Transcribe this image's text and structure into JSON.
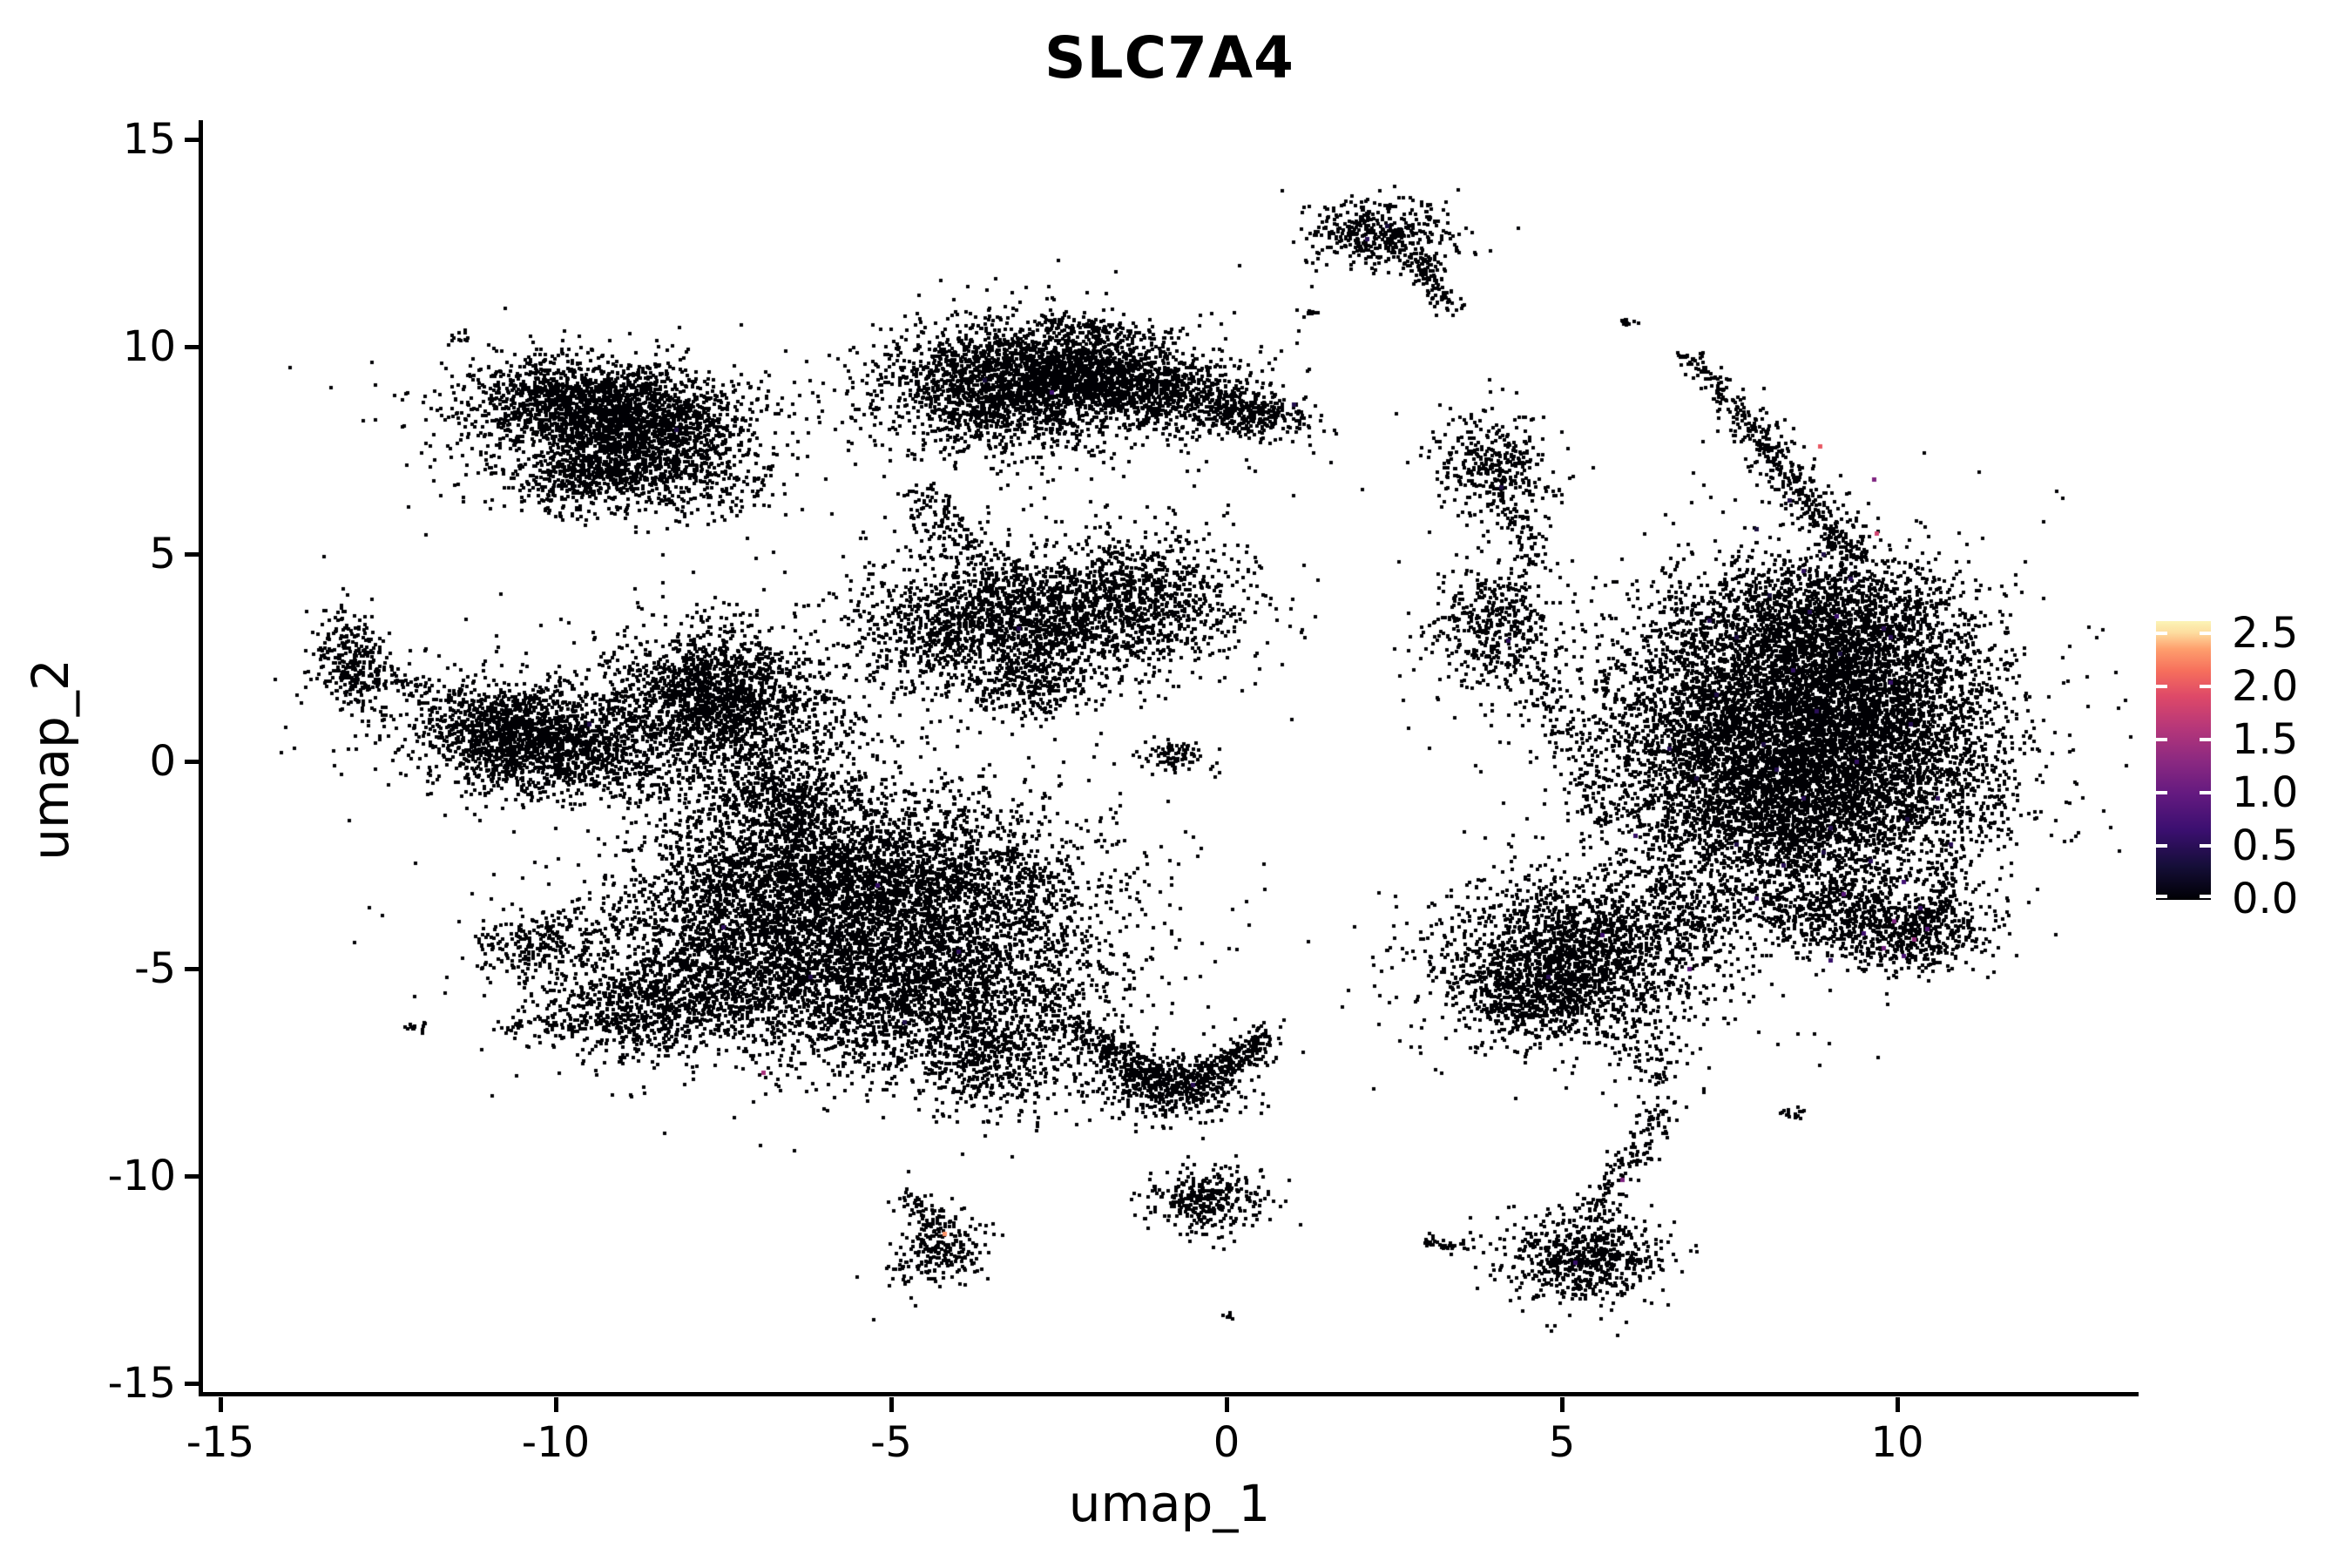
{
  "title": "SLC7A4",
  "chart_data": {
    "type": "scatter",
    "subtype": "umap-feature-plot",
    "title": "SLC7A4",
    "xlabel": "umap_1",
    "ylabel": "umap_2",
    "x_tick_labels": [
      "-15",
      "-10",
      "-5",
      "0",
      "5",
      "10"
    ],
    "x_tick_values": [
      -15,
      -10,
      -5,
      0,
      5,
      10
    ],
    "y_tick_labels": [
      "15",
      "10",
      "5",
      "0",
      "-5",
      "-10",
      "-15"
    ],
    "y_tick_values": [
      15,
      10,
      5,
      0,
      -5,
      -10,
      -15
    ],
    "xlim": [
      -15.3,
      13.6
    ],
    "ylim": [
      -15.3,
      15.4
    ],
    "grid": false,
    "legend_position": "right-colorbar",
    "point_color": "#000004",
    "dot_size": 4,
    "expressing_dot_size": 5,
    "seed": 42,
    "colorbar": {
      "tick_labels": [
        "2.5",
        "2.0",
        "1.5",
        "1.0",
        "0.5",
        "0.0"
      ],
      "tick_values": [
        2.5,
        2.0,
        1.5,
        1.0,
        0.5,
        0.0
      ],
      "vmin": 0.0,
      "vmax": 2.61,
      "colormap": [
        [
          0.0,
          "#000004"
        ],
        [
          0.12,
          "#150e38"
        ],
        [
          0.25,
          "#3b0f70"
        ],
        [
          0.38,
          "#641a80"
        ],
        [
          0.5,
          "#8c2981"
        ],
        [
          0.62,
          "#b73779"
        ],
        [
          0.73,
          "#de4968"
        ],
        [
          0.82,
          "#f66e5c"
        ],
        [
          0.9,
          "#fe9f6d"
        ],
        [
          0.96,
          "#fddea0"
        ],
        [
          1.0,
          "#fcf4b6"
        ]
      ]
    },
    "clusters": [
      {
        "name": "top-left",
        "blobs": [
          {
            "cx": -9.7,
            "cy": 8.6,
            "sx": 0.85,
            "sy": 0.55,
            "rot": -10,
            "n": 1100
          },
          {
            "cx": -8.6,
            "cy": 8.2,
            "sx": 0.75,
            "sy": 0.6,
            "rot": 0,
            "n": 900
          },
          {
            "cx": -9.3,
            "cy": 7.0,
            "sx": 0.7,
            "sy": 0.45,
            "rot": 15,
            "n": 650
          },
          {
            "cx": -9.4,
            "cy": 8.0,
            "sx": 1.35,
            "sy": 0.95,
            "rot": 0,
            "n": 600
          },
          {
            "cx": -7.8,
            "cy": 6.8,
            "sx": 0.5,
            "sy": 0.55,
            "rot": 0,
            "n": 220
          },
          {
            "cx": -11.5,
            "cy": 10.2,
            "sx": 0.1,
            "sy": 0.06,
            "rot": 0,
            "n": 12
          }
        ],
        "lines": []
      },
      {
        "name": "left-satellite",
        "blobs": [
          {
            "cx": -13.0,
            "cy": 2.4,
            "sx": 0.32,
            "sy": 0.6,
            "rot": 10,
            "n": 320
          }
        ],
        "lines": [
          {
            "x1": -12.5,
            "y1": 2.0,
            "x2": -10.9,
            "y2": 1.3,
            "sigma": 0.15,
            "n": 70
          }
        ]
      },
      {
        "name": "left-middle",
        "blobs": [
          {
            "cx": -10.1,
            "cy": 0.35,
            "sx": 1.0,
            "sy": 0.6,
            "rot": -5,
            "n": 1300
          },
          {
            "cx": -10.7,
            "cy": 0.9,
            "sx": 0.55,
            "sy": 0.45,
            "rot": 0,
            "n": 450
          },
          {
            "cx": -7.4,
            "cy": 1.1,
            "sx": 0.8,
            "sy": 1.05,
            "rot": 12,
            "n": 1300
          },
          {
            "cx": -7.7,
            "cy": 1.9,
            "sx": 0.55,
            "sy": 0.6,
            "rot": 0,
            "n": 500
          },
          {
            "cx": -9.0,
            "cy": 0.8,
            "sx": 1.8,
            "sy": 1.0,
            "rot": 0,
            "n": 650
          }
        ],
        "lines": [
          {
            "x1": -7.0,
            "y1": -0.6,
            "x2": -5.9,
            "y2": -2.9,
            "sigma": 0.35,
            "n": 220
          }
        ]
      },
      {
        "name": "mid-top",
        "blobs": [
          {
            "cx": -3.3,
            "cy": 9.0,
            "sx": 0.95,
            "sy": 0.75,
            "rot": 0,
            "n": 1500
          },
          {
            "cx": -2.2,
            "cy": 9.4,
            "sx": 0.8,
            "sy": 0.5,
            "rot": -8,
            "n": 850
          },
          {
            "cx": -1.0,
            "cy": 8.9,
            "sx": 0.9,
            "sy": 0.42,
            "rot": -14,
            "n": 700
          },
          {
            "cx": 0.3,
            "cy": 8.4,
            "sx": 0.5,
            "sy": 0.3,
            "rot": -20,
            "n": 260
          },
          {
            "cx": -2.4,
            "cy": 9.0,
            "sx": 1.6,
            "sy": 0.95,
            "rot": 0,
            "n": 650
          },
          {
            "cx": 1.25,
            "cy": 10.8,
            "sx": 0.08,
            "sy": 0.05,
            "rot": 0,
            "n": 10
          }
        ],
        "lines": [
          {
            "x1": -2.7,
            "y1": 10.6,
            "x2": -0.8,
            "y2": 10.2,
            "sigma": 0.12,
            "n": 80
          },
          {
            "x1": -4.6,
            "y1": 6.4,
            "x2": -3.7,
            "y2": 4.9,
            "sigma": 0.25,
            "n": 130
          }
        ]
      },
      {
        "name": "mid-center",
        "blobs": [
          {
            "cx": -3.6,
            "cy": 3.3,
            "sx": 1.0,
            "sy": 0.8,
            "rot": 8,
            "n": 1300
          },
          {
            "cx": -1.4,
            "cy": 3.9,
            "sx": 0.85,
            "sy": 0.8,
            "rot": 0,
            "n": 900
          },
          {
            "cx": -2.5,
            "cy": 3.5,
            "sx": 1.5,
            "sy": 1.0,
            "rot": 0,
            "n": 600
          },
          {
            "cx": -3.0,
            "cy": 1.8,
            "sx": 0.4,
            "sy": 0.4,
            "rot": 0,
            "n": 220
          },
          {
            "cx": -0.75,
            "cy": 0.1,
            "sx": 0.25,
            "sy": 0.2,
            "rot": 0,
            "n": 90
          }
        ],
        "lines": []
      },
      {
        "name": "bottom-left-mass",
        "blobs": [
          {
            "cx": -6.6,
            "cy": -2.7,
            "sx": 1.1,
            "sy": 0.85,
            "rot": 0,
            "n": 1500
          },
          {
            "cx": -4.5,
            "cy": -3.2,
            "sx": 1.3,
            "sy": 1.25,
            "rot": 0,
            "n": 2400
          },
          {
            "cx": -7.0,
            "cy": -5.0,
            "sx": 1.2,
            "sy": 1.0,
            "rot": 0,
            "n": 1700
          },
          {
            "cx": -4.3,
            "cy": -5.7,
            "sx": 1.25,
            "sy": 1.0,
            "rot": 0,
            "n": 1700
          },
          {
            "cx": -3.5,
            "cy": -7.4,
            "sx": 0.55,
            "sy": 0.6,
            "rot": 0,
            "n": 350
          },
          {
            "cx": -6.5,
            "cy": -0.9,
            "sx": 0.55,
            "sy": 0.45,
            "rot": 0,
            "n": 280
          },
          {
            "cx": -5.5,
            "cy": -4.2,
            "sx": 2.2,
            "sy": 1.8,
            "rot": 0,
            "n": 1000
          },
          {
            "cx": -8.7,
            "cy": -5.9,
            "sx": 0.85,
            "sy": 0.6,
            "rot": 25,
            "n": 550
          },
          {
            "cx": -10.4,
            "cy": -4.5,
            "sx": 0.45,
            "sy": 0.38,
            "rot": 0,
            "n": 220
          },
          {
            "cx": -12.1,
            "cy": -6.4,
            "sx": 0.12,
            "sy": 0.07,
            "rot": 0,
            "n": 14
          }
        ],
        "lines": [
          {
            "x1": -10.7,
            "y1": -6.4,
            "x2": -8.8,
            "y2": -6.2,
            "sigma": 0.13,
            "n": 90
          },
          {
            "x1": -9.9,
            "y1": -4.2,
            "x2": -8.8,
            "y2": -3.5,
            "sigma": 0.25,
            "n": 70
          }
        ]
      },
      {
        "name": "bottom-center-chevron",
        "blobs": [
          {
            "cx": -0.8,
            "cy": -7.9,
            "sx": 0.55,
            "sy": 0.4,
            "rot": 0,
            "n": 420
          }
        ],
        "lines": [
          {
            "x1": -2.1,
            "y1": -6.6,
            "x2": -0.9,
            "y2": -7.8,
            "sigma": 0.2,
            "n": 260
          },
          {
            "x1": 0.6,
            "y1": -6.6,
            "x2": -0.4,
            "y2": -7.8,
            "sigma": 0.18,
            "n": 240
          },
          {
            "x1": -2.6,
            "y1": -6.3,
            "x2": -2.0,
            "y2": -6.6,
            "sigma": 0.15,
            "n": 40
          }
        ]
      },
      {
        "name": "bottom-center-small",
        "blobs": [
          {
            "cx": -0.35,
            "cy": -10.6,
            "sx": 0.45,
            "sy": 0.38,
            "rot": 0,
            "n": 330
          },
          {
            "cx": 0.05,
            "cy": -13.4,
            "sx": 0.06,
            "sy": 0.05,
            "rot": 0,
            "n": 8
          },
          {
            "cx": -4.25,
            "cy": -11.8,
            "sx": 0.32,
            "sy": 0.45,
            "rot": -25,
            "n": 230
          }
        ],
        "lines": [
          {
            "x1": 2.95,
            "y1": -11.55,
            "x2": 3.6,
            "y2": -11.8,
            "sigma": 0.08,
            "n": 40
          },
          {
            "x1": -4.8,
            "y1": -10.4,
            "x2": -4.3,
            "y2": -11.3,
            "sigma": 0.12,
            "n": 60
          }
        ]
      },
      {
        "name": "top-center-flag",
        "blobs": [
          {
            "cx": 2.3,
            "cy": 12.7,
            "sx": 0.55,
            "sy": 0.38,
            "rot": -10,
            "n": 420
          },
          {
            "cx": 5.95,
            "cy": 10.6,
            "sx": 0.1,
            "sy": 0.06,
            "rot": 0,
            "n": 14
          }
        ],
        "lines": [
          {
            "x1": 2.85,
            "y1": 12.2,
            "x2": 3.25,
            "y2": 11.0,
            "sigma": 0.13,
            "n": 110
          }
        ]
      },
      {
        "name": "right-mass",
        "blobs": [
          {
            "cx": 8.9,
            "cy": 3.2,
            "sx": 1.05,
            "sy": 0.95,
            "rot": 0,
            "n": 1900
          },
          {
            "cx": 9.5,
            "cy": 1.0,
            "sx": 0.95,
            "sy": 1.3,
            "rot": 0,
            "n": 2200
          },
          {
            "cx": 8.2,
            "cy": 0.6,
            "sx": 1.2,
            "sy": 1.2,
            "rot": 0,
            "n": 2400
          },
          {
            "cx": 8.6,
            "cy": -1.4,
            "sx": 1.3,
            "sy": 0.95,
            "rot": 0,
            "n": 2000
          },
          {
            "cx": 6.9,
            "cy": 1.0,
            "sx": 0.8,
            "sy": 1.6,
            "rot": 0,
            "n": 800
          },
          {
            "cx": 8.5,
            "cy": 0.8,
            "sx": 2.0,
            "sy": 2.3,
            "rot": 0,
            "n": 1100
          },
          {
            "cx": 5.3,
            "cy": -4.6,
            "sx": 0.95,
            "sy": 0.9,
            "rot": 0,
            "n": 1500
          },
          {
            "cx": 4.6,
            "cy": -5.6,
            "sx": 0.6,
            "sy": 0.6,
            "rot": 0,
            "n": 500
          },
          {
            "cx": 5.3,
            "cy": -4.8,
            "sx": 1.45,
            "sy": 1.3,
            "rot": 0,
            "n": 500
          },
          {
            "cx": 9.3,
            "cy": -3.7,
            "sx": 1.05,
            "sy": 0.5,
            "rot": -14,
            "n": 800
          },
          {
            "cx": 10.3,
            "cy": -4.3,
            "sx": 0.45,
            "sy": 0.38,
            "rot": 0,
            "n": 260
          },
          {
            "cx": 10.9,
            "cy": 0.3,
            "sx": 0.5,
            "sy": 1.2,
            "rot": 0,
            "n": 160
          }
        ],
        "lines": [
          {
            "x1": 6.9,
            "y1": 9.9,
            "x2": 9.4,
            "y2": 4.8,
            "sigma": 0.13,
            "n": 330
          },
          {
            "x1": 7.6,
            "y1": 8.4,
            "x2": 9.2,
            "y2": 5.2,
            "sigma": 0.3,
            "n": 130
          },
          {
            "x1": 10.9,
            "y1": -2.1,
            "x2": 10.5,
            "y2": -4.0,
            "sigma": 0.12,
            "n": 70
          },
          {
            "x1": 6.2,
            "y1": -2.8,
            "x2": 7.3,
            "y2": -4.2,
            "sigma": 0.4,
            "n": 150
          },
          {
            "x1": 5.9,
            "y1": -6.2,
            "x2": 6.6,
            "y2": -7.9,
            "sigma": 0.3,
            "n": 90
          }
        ]
      },
      {
        "name": "right-small-pair",
        "blobs": [
          {
            "cx": 4.05,
            "cy": 7.0,
            "sx": 0.45,
            "sy": 0.7,
            "rot": 8,
            "n": 380
          },
          {
            "cx": 4.0,
            "cy": 3.2,
            "sx": 0.5,
            "sy": 0.85,
            "rot": 0,
            "n": 450
          }
        ],
        "lines": [
          {
            "x1": 4.3,
            "y1": 6.0,
            "x2": 4.6,
            "y2": 4.7,
            "sigma": 0.15,
            "n": 50
          },
          {
            "x1": 4.4,
            "y1": 2.2,
            "x2": 5.8,
            "y2": -1.4,
            "sigma": 0.22,
            "n": 140
          }
        ]
      },
      {
        "name": "bottom-right-tadpole",
        "blobs": [
          {
            "cx": 5.35,
            "cy": -12.0,
            "sx": 0.6,
            "sy": 0.55,
            "rot": 0,
            "n": 650
          },
          {
            "cx": 8.45,
            "cy": -8.5,
            "sx": 0.12,
            "sy": 0.08,
            "rot": 0,
            "n": 16
          }
        ],
        "lines": [
          {
            "x1": 5.35,
            "y1": -11.0,
            "x2": 6.5,
            "y2": -8.5,
            "sigma": 0.16,
            "n": 140
          }
        ]
      }
    ],
    "expressing_cells": [
      [
        8.85,
        7.6,
        2.0
      ],
      [
        9.65,
        6.8,
        1.2
      ],
      [
        9.7,
        5.5,
        1.8
      ],
      [
        8.4,
        6.3,
        0.4
      ],
      [
        7.9,
        5.6,
        0.35
      ],
      [
        8.9,
        5.0,
        0.4
      ],
      [
        9.3,
        4.4,
        0.5
      ],
      [
        8.1,
        4.0,
        0.35
      ],
      [
        8.7,
        3.6,
        0.45
      ],
      [
        9.8,
        3.2,
        0.5
      ],
      [
        7.6,
        3.0,
        0.4
      ],
      [
        9.15,
        2.6,
        0.35
      ],
      [
        8.45,
        2.2,
        0.55
      ],
      [
        9.9,
        1.9,
        0.6
      ],
      [
        7.3,
        1.6,
        0.4
      ],
      [
        8.8,
        1.2,
        0.5
      ],
      [
        10.2,
        0.9,
        0.45
      ],
      [
        8.0,
        0.4,
        0.4
      ],
      [
        9.4,
        0.0,
        0.55
      ],
      [
        7.0,
        -0.4,
        0.4
      ],
      [
        8.6,
        -0.9,
        0.5
      ],
      [
        10.6,
        -0.9,
        0.55
      ],
      [
        9.0,
        -1.6,
        0.45
      ],
      [
        7.6,
        -2.0,
        0.4
      ],
      [
        10.8,
        -2.0,
        0.5
      ],
      [
        8.3,
        -2.5,
        0.5
      ],
      [
        9.2,
        -3.2,
        0.9
      ],
      [
        10.1,
        -2.9,
        0.7
      ],
      [
        9.95,
        -3.85,
        1.2
      ],
      [
        10.25,
        -4.3,
        1.4
      ],
      [
        10.45,
        -4.05,
        0.9
      ],
      [
        9.8,
        -4.5,
        1.1
      ],
      [
        10.1,
        -4.7,
        0.8
      ],
      [
        9.5,
        -4.15,
        0.7
      ],
      [
        10.35,
        -3.55,
        0.6
      ],
      [
        9.0,
        -4.8,
        0.6
      ],
      [
        6.6,
        0.3,
        0.5
      ],
      [
        6.1,
        -1.8,
        0.6
      ],
      [
        5.6,
        -4.2,
        0.7
      ],
      [
        4.8,
        -5.2,
        0.5
      ],
      [
        6.9,
        -5.0,
        0.9
      ],
      [
        7.2,
        3.4,
        0.5
      ],
      [
        8.6,
        4.6,
        0.55
      ],
      [
        9.1,
        3.5,
        0.65
      ],
      [
        9.9,
        3.0,
        0.5
      ],
      [
        2.1,
        12.6,
        0.5
      ],
      [
        1.0,
        8.6,
        0.45
      ],
      [
        -2.6,
        8.9,
        0.7
      ],
      [
        -3.1,
        3.2,
        0.5
      ],
      [
        -0.5,
        -7.8,
        0.5
      ],
      [
        5.9,
        -10.1,
        1.2
      ],
      [
        -4.2,
        -11.4,
        2.3
      ],
      [
        -6.9,
        -7.5,
        1.5
      ],
      [
        -5.2,
        -3.0,
        0.6
      ],
      [
        -4.0,
        -4.6,
        0.5
      ],
      [
        -7.5,
        -4.0,
        0.55
      ],
      [
        -9.5,
        0.9,
        0.45
      ],
      [
        4.2,
        2.9,
        0.5
      ],
      [
        8.2,
        -0.2,
        0.45
      ],
      [
        9.6,
        -2.4,
        0.5
      ],
      [
        10.15,
        -1.4,
        0.4
      ],
      [
        7.9,
        -3.3,
        0.55
      ],
      [
        8.9,
        -2.2,
        0.4
      ],
      [
        2.4,
        12.9,
        0.35
      ],
      [
        -8.2,
        8.0,
        0.4
      ],
      [
        -3.6,
        9.2,
        0.35
      ],
      [
        -6.2,
        -5.2,
        0.45
      ],
      [
        -4.8,
        -6.3,
        0.4
      ],
      [
        5.2,
        -12.1,
        0.6
      ],
      [
        4.1,
        6.6,
        0.4
      ]
    ]
  }
}
